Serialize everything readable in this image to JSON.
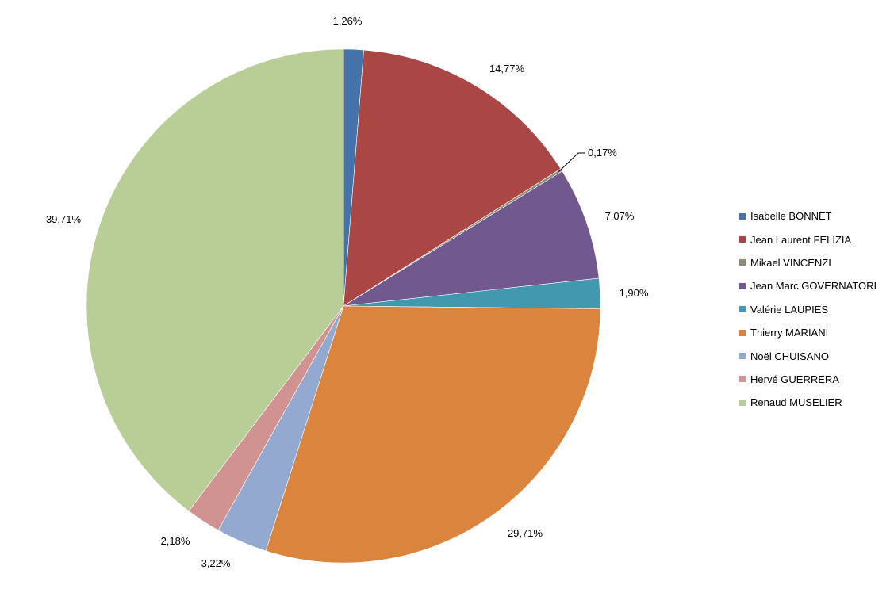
{
  "chart_data": {
    "type": "pie",
    "legend_position": "right",
    "slices": [
      {
        "name": "Isabelle BONNET",
        "value": 1.26,
        "label": "1,26%",
        "color": "#4572A7"
      },
      {
        "name": "Jean Laurent FELIZIA",
        "value": 14.77,
        "label": "14,77%",
        "color": "#AA4643"
      },
      {
        "name": "Mikael VINCENZI",
        "value": 0.17,
        "label": "0,17%",
        "color": "#8C8C77"
      },
      {
        "name": "Jean Marc GOVERNATORI",
        "value": 7.07,
        "label": "7,07%",
        "color": "#71588F"
      },
      {
        "name": "Valérie LAUPIES",
        "value": 1.9,
        "label": "1,90%",
        "color": "#4198AF"
      },
      {
        "name": "Thierry MARIANI",
        "value": 29.71,
        "label": "29,71%",
        "color": "#DB843D"
      },
      {
        "name": "Noël CHUISANO",
        "value": 3.22,
        "label": "3,22%",
        "color": "#93A9D0"
      },
      {
        "name": "Hervé GUERRERA",
        "value": 2.18,
        "label": "2,18%",
        "color": "#D09392"
      },
      {
        "name": "Renaud MUSELIER",
        "value": 39.71,
        "label": "39,71%",
        "color": "#B9CD96"
      }
    ]
  }
}
